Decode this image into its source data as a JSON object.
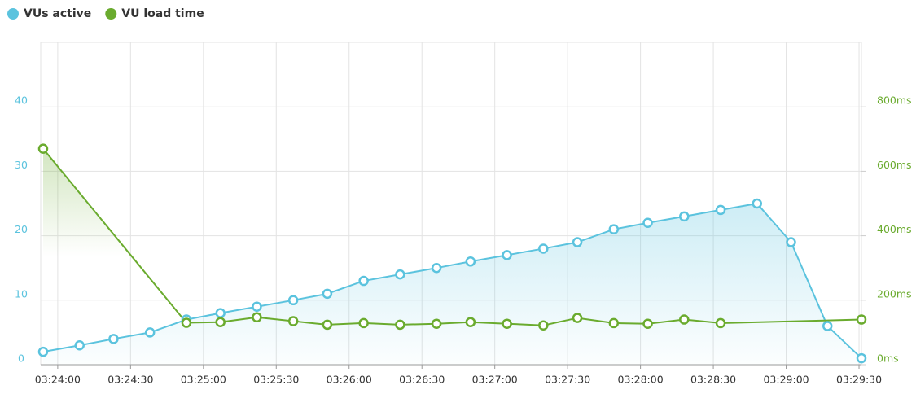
{
  "chart_data": {
    "type": "line",
    "x": [
      "03:23:54",
      "03:24:09",
      "03:24:23",
      "03:24:38",
      "03:24:53",
      "03:25:07",
      "03:25:22",
      "03:25:37",
      "03:25:51",
      "03:26:06",
      "03:26:21",
      "03:26:36",
      "03:26:50",
      "03:27:05",
      "03:27:20",
      "03:27:34",
      "03:27:49",
      "03:28:03",
      "03:28:18",
      "03:28:33",
      "03:28:48",
      "03:29:02",
      "03:29:17",
      "03:29:31"
    ],
    "series": [
      {
        "name": "VUs active",
        "color": "#5bc3de",
        "axis": "y",
        "values": [
          2,
          3,
          4,
          5,
          7,
          8,
          9,
          10,
          11,
          13,
          14,
          15,
          16,
          17,
          18,
          19,
          21,
          22,
          23,
          24,
          25,
          19,
          6,
          1
        ]
      },
      {
        "name": "VU load time",
        "color": "#6aab2e",
        "axis": "y2",
        "x": [
          "03:23:54",
          "03:24:53",
          "03:25:07",
          "03:25:22",
          "03:25:37",
          "03:25:51",
          "03:26:06",
          "03:26:21",
          "03:26:36",
          "03:26:50",
          "03:27:05",
          "03:27:20",
          "03:27:34",
          "03:27:49",
          "03:28:03",
          "03:28:18",
          "03:28:33",
          "03:29:31"
        ],
        "values": [
          670,
          130,
          132,
          147,
          135,
          124,
          129,
          124,
          127,
          132,
          127,
          122,
          145,
          129,
          127,
          140,
          129,
          140
        ]
      }
    ],
    "xlim": [
      "03:23:53",
      "03:29:31"
    ],
    "xticks": [
      "03:24:00",
      "03:24:30",
      "03:25:00",
      "03:25:30",
      "03:26:00",
      "03:26:30",
      "03:27:00",
      "03:27:30",
      "03:28:00",
      "03:28:30",
      "03:29:00",
      "03:29:30"
    ],
    "ylim": [
      0,
      50
    ],
    "yticks": [
      0,
      10,
      20,
      30,
      40
    ],
    "y2lim": [
      0,
      1000
    ],
    "y2ticks": [
      {
        "value": 0,
        "label": "0ms"
      },
      {
        "value": 200,
        "label": "200ms"
      },
      {
        "value": 400,
        "label": "400ms"
      },
      {
        "value": 600,
        "label": "600ms"
      },
      {
        "value": 800,
        "label": "800ms"
      }
    ],
    "grid": true,
    "legend": "top-left"
  }
}
